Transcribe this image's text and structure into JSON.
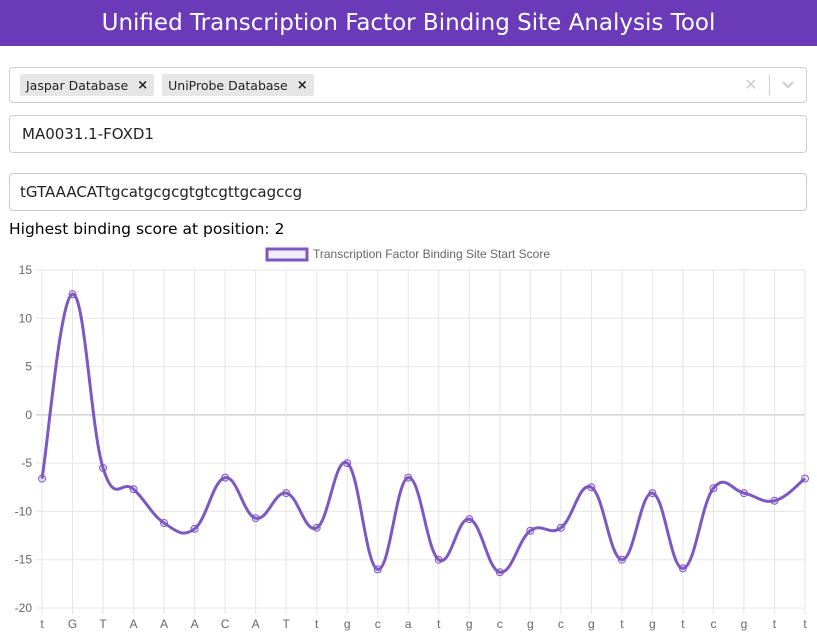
{
  "header": {
    "title": "Unified Transcription Factor Binding Site Analysis Tool"
  },
  "database_select": {
    "chips": [
      "Jaspar Database",
      "UniProbe Database"
    ],
    "remove_glyph": "×",
    "clear_glyph": "×",
    "arrow_icon": "chevron-down-icon"
  },
  "motif_field": {
    "value": "MA0031.1-FOXD1"
  },
  "sequence_field": {
    "value": "tGTAAACATtgcatgcgcgtgtcgttgcagccg"
  },
  "result": {
    "text": "Highest binding score at position: 2"
  },
  "colors": {
    "header": "#6a3ab8",
    "series": "#7e57c2",
    "grid": "#e5e5e5",
    "zero_line": "#bdbdbd"
  },
  "chart_data": {
    "type": "line",
    "categories": [
      "t",
      "G",
      "T",
      "A",
      "A",
      "A",
      "C",
      "A",
      "T",
      "t",
      "g",
      "c",
      "a",
      "t",
      "g",
      "c",
      "g",
      "c",
      "g",
      "t",
      "g",
      "t",
      "c",
      "g",
      "t",
      "t"
    ],
    "series": [
      {
        "name": "Transcription Factor Binding Site Start Score",
        "values": [
          -6.6,
          12.5,
          -5.5,
          -7.7,
          -11.2,
          -11.8,
          -6.5,
          -10.7,
          -8.1,
          -11.7,
          -5.0,
          -16.0,
          -6.5,
          -15.0,
          -10.8,
          -16.3,
          -12.0,
          -11.7,
          -7.5,
          -15.0,
          -8.1,
          -15.9,
          -7.6,
          -8.1,
          -8.9,
          -6.6
        ]
      }
    ],
    "ylim": [
      -20,
      15
    ],
    "yticks": [
      15,
      10,
      5,
      0,
      -5,
      -10,
      -15,
      -20
    ],
    "legend": "top",
    "grid": true
  }
}
